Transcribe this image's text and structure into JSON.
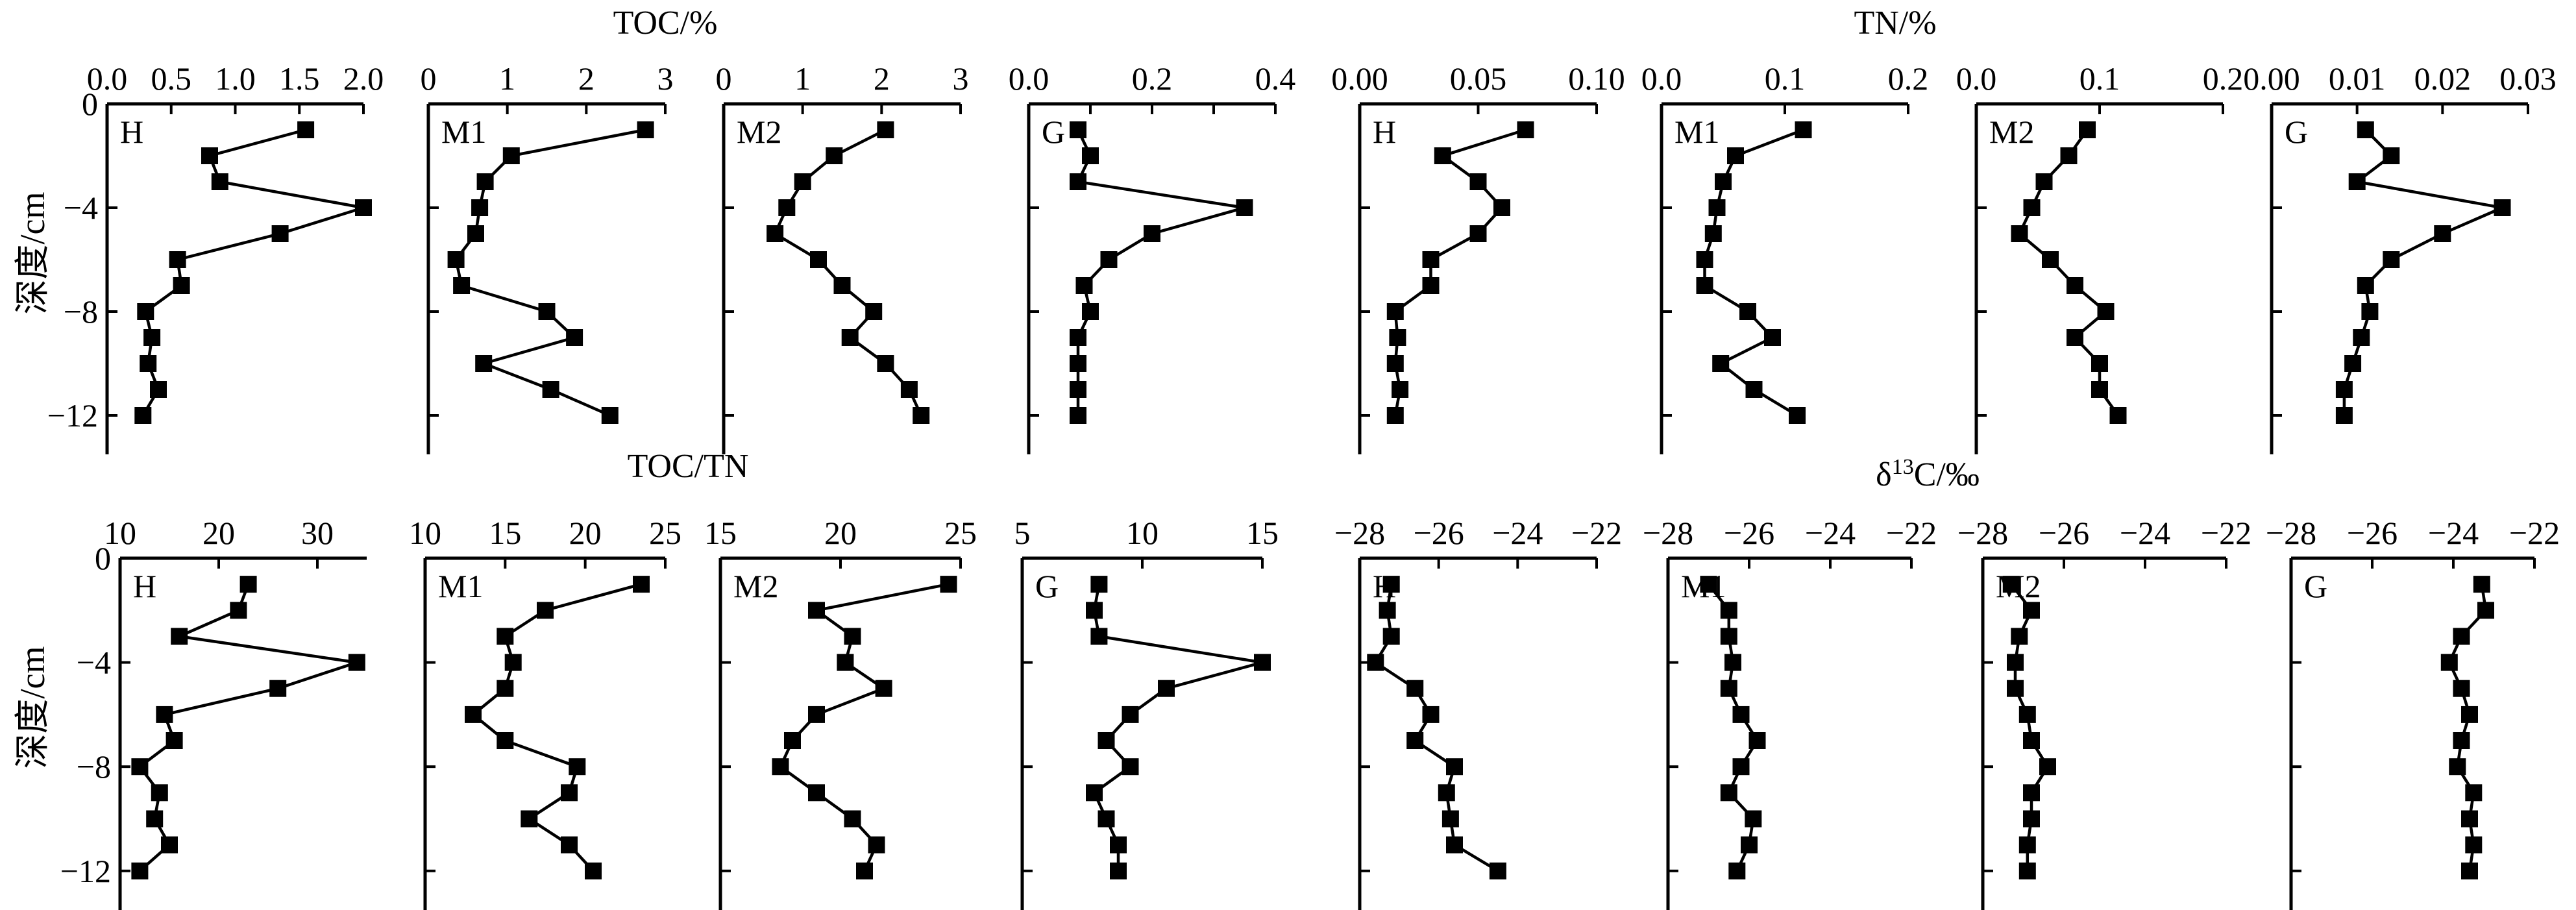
{
  "y_axis": {
    "label": "深度/cm",
    "ticks": [
      0,
      -4,
      -8,
      -12
    ],
    "tick_labels": [
      "0",
      "−4",
      "−8",
      "−12"
    ],
    "ylim": [
      0,
      -13.5
    ]
  },
  "group_titles": {
    "toc": "TOC/%",
    "tn": "TN/%",
    "ctn": "TOC/TN",
    "d13c_main": "δ",
    "d13c_sup": "13",
    "d13c_rest": "C/‰"
  },
  "chart_data": [
    {
      "type": "line",
      "variable": "TOC/%",
      "panel_label": "H",
      "xlim": [
        0,
        2.0
      ],
      "xticks": [
        0,
        0.5,
        1.0,
        1.5,
        2.0
      ],
      "xtick_labels": [
        "0.0",
        "0.5",
        "1.0",
        "1.5",
        "2.0"
      ],
      "x": [
        1.55,
        0.8,
        0.88,
        2.0,
        1.35,
        0.55,
        0.58,
        0.3,
        0.35,
        0.32,
        0.4,
        0.28
      ],
      "y": [
        -1,
        -2,
        -3,
        -4,
        -5,
        -6,
        -7,
        -8,
        -9,
        -10,
        -11,
        -12
      ]
    },
    {
      "type": "line",
      "variable": "TOC/%",
      "panel_label": "M1",
      "xlim": [
        0,
        3
      ],
      "xticks": [
        0,
        1,
        2,
        3
      ],
      "xtick_labels": [
        "0",
        "1",
        "2",
        "3"
      ],
      "x": [
        2.75,
        1.05,
        0.72,
        0.65,
        0.6,
        0.35,
        0.42,
        1.5,
        1.85,
        0.7,
        1.55,
        2.3
      ],
      "y": [
        -1,
        -2,
        -3,
        -4,
        -5,
        -6,
        -7,
        -8,
        -9,
        -10,
        -11,
        -12
      ]
    },
    {
      "type": "line",
      "variable": "TOC/%",
      "panel_label": "M2",
      "xlim": [
        0,
        3
      ],
      "xticks": [
        0,
        1,
        2,
        3
      ],
      "xtick_labels": [
        "0",
        "1",
        "2",
        "3"
      ],
      "x": [
        2.05,
        1.4,
        1.0,
        0.8,
        0.65,
        1.2,
        1.5,
        1.9,
        1.6,
        2.05,
        2.35,
        2.5
      ],
      "y": [
        -1,
        -2,
        -3,
        -4,
        -5,
        -6,
        -7,
        -8,
        -9,
        -10,
        -11,
        -12
      ]
    },
    {
      "type": "line",
      "variable": "TOC/%",
      "panel_label": "G",
      "xlim": [
        0,
        0.4
      ],
      "xticks": [
        0,
        0.1,
        0.2,
        0.3,
        0.4
      ],
      "xtick_labels": [
        "0.0",
        "",
        "0.2",
        "",
        "0.4"
      ],
      "x": [
        0.08,
        0.1,
        0.08,
        0.35,
        0.2,
        0.13,
        0.09,
        0.1,
        0.08,
        0.08,
        0.08,
        0.08
      ],
      "y": [
        -1,
        -2,
        -3,
        -4,
        -5,
        -6,
        -7,
        -8,
        -9,
        -10,
        -11,
        -12
      ]
    },
    {
      "type": "line",
      "variable": "TN/%",
      "panel_label": "H",
      "xlim": [
        0,
        0.1
      ],
      "xticks": [
        0,
        0.05,
        0.1
      ],
      "xtick_labels": [
        "0.00",
        "0.05",
        "0.10"
      ],
      "x": [
        0.07,
        0.035,
        0.05,
        0.06,
        0.05,
        0.03,
        0.03,
        0.015,
        0.016,
        0.015,
        0.017,
        0.015
      ],
      "y": [
        -1,
        -2,
        -3,
        -4,
        -5,
        -6,
        -7,
        -8,
        -9,
        -10,
        -11,
        -12
      ]
    },
    {
      "type": "line",
      "variable": "TN/%",
      "panel_label": "M1",
      "xlim": [
        0,
        0.2
      ],
      "xticks": [
        0,
        0.1,
        0.2
      ],
      "xtick_labels": [
        "0.0",
        "0.1",
        "0.2"
      ],
      "x": [
        0.115,
        0.06,
        0.05,
        0.045,
        0.042,
        0.035,
        0.035,
        0.07,
        0.09,
        0.048,
        0.075,
        0.11
      ],
      "y": [
        -1,
        -2,
        -3,
        -4,
        -5,
        -6,
        -7,
        -8,
        -9,
        -10,
        -11,
        -12
      ]
    },
    {
      "type": "line",
      "variable": "TN/%",
      "panel_label": "M2",
      "xlim": [
        0,
        0.2
      ],
      "xticks": [
        0,
        0.1,
        0.2
      ],
      "xtick_labels": [
        "0.0",
        "0.1",
        "0.2"
      ],
      "x": [
        0.09,
        0.075,
        0.055,
        0.045,
        0.035,
        0.06,
        0.08,
        0.105,
        0.08,
        0.1,
        0.1,
        0.115
      ],
      "y": [
        -1,
        -2,
        -3,
        -4,
        -5,
        -6,
        -7,
        -8,
        -9,
        -10,
        -11,
        -12
      ]
    },
    {
      "type": "line",
      "variable": "TN/%",
      "panel_label": "G",
      "xlim": [
        0,
        0.03
      ],
      "xticks": [
        0,
        0.01,
        0.02,
        0.03
      ],
      "xtick_labels": [
        "0.00",
        "0.01",
        "0.02",
        "0.03"
      ],
      "x": [
        0.011,
        0.014,
        0.01,
        0.027,
        0.02,
        0.014,
        0.011,
        0.0115,
        0.0105,
        0.0095,
        0.0085,
        0.0085
      ],
      "y": [
        -1,
        -2,
        -3,
        -4,
        -5,
        -6,
        -7,
        -8,
        -9,
        -10,
        -11,
        -12
      ]
    },
    {
      "type": "line",
      "variable": "TOC/TN",
      "panel_label": "H",
      "xlim": [
        10,
        35
      ],
      "xticks": [
        10,
        20,
        30
      ],
      "xtick_labels": [
        "10",
        "20",
        "30"
      ],
      "x": [
        23,
        22,
        16,
        34,
        26,
        14.5,
        15.5,
        12,
        14,
        13.5,
        15,
        12
      ],
      "y": [
        -1,
        -2,
        -3,
        -4,
        -5,
        -6,
        -7,
        -8,
        -9,
        -10,
        -11,
        -12
      ]
    },
    {
      "type": "line",
      "variable": "TOC/TN",
      "panel_label": "M1",
      "xlim": [
        10,
        25
      ],
      "xticks": [
        10,
        15,
        20,
        25
      ],
      "xtick_labels": [
        "10",
        "15",
        "20",
        "25"
      ],
      "x": [
        23.5,
        17.5,
        15,
        15.5,
        15,
        13,
        15,
        19.5,
        19,
        16.5,
        19,
        20.5
      ],
      "y": [
        -1,
        -2,
        -3,
        -4,
        -5,
        -6,
        -7,
        -8,
        -9,
        -10,
        -11,
        -12
      ]
    },
    {
      "type": "line",
      "variable": "TOC/TN",
      "panel_label": "M2",
      "xlim": [
        15,
        25
      ],
      "xticks": [
        15,
        20,
        25
      ],
      "xtick_labels": [
        "15",
        "20",
        "25"
      ],
      "x": [
        24.5,
        19,
        20.5,
        20.2,
        21.8,
        19,
        18,
        17.5,
        19,
        20.5,
        21.5,
        21
      ],
      "y": [
        -1,
        -2,
        -3,
        -4,
        -5,
        -6,
        -7,
        -8,
        -9,
        -10,
        -11,
        -12
      ]
    },
    {
      "type": "line",
      "variable": "TOC/TN",
      "panel_label": "G",
      "xlim": [
        5,
        15
      ],
      "xticks": [
        5,
        10,
        15
      ],
      "xtick_labels": [
        "5",
        "10",
        "15"
      ],
      "x": [
        8.2,
        8,
        8.2,
        15,
        11,
        9.5,
        8.5,
        9.5,
        8,
        8.5,
        9,
        9
      ],
      "y": [
        -1,
        -2,
        -3,
        -4,
        -5,
        -6,
        -7,
        -8,
        -9,
        -10,
        -11,
        -12
      ]
    },
    {
      "type": "line",
      "variable": "δ13C/‰",
      "panel_label": "H",
      "xlim": [
        -28,
        -22
      ],
      "xticks": [
        -28,
        -26,
        -24,
        -22
      ],
      "xtick_labels": [
        "−28",
        "−26",
        "−24",
        "−22"
      ],
      "x": [
        -27.2,
        -27.3,
        -27.2,
        -27.6,
        -26.6,
        -26.2,
        -26.6,
        -25.6,
        -25.8,
        -25.7,
        -25.6,
        -24.5
      ],
      "y": [
        -1,
        -2,
        -3,
        -4,
        -5,
        -6,
        -7,
        -8,
        -9,
        -10,
        -11,
        -12
      ]
    },
    {
      "type": "line",
      "variable": "δ13C/‰",
      "panel_label": "M1",
      "xlim": [
        -28,
        -22
      ],
      "xticks": [
        -28,
        -26,
        -24,
        -22
      ],
      "xtick_labels": [
        "−28",
        "−26",
        "−24",
        "−22"
      ],
      "x": [
        -27,
        -26.5,
        -26.5,
        -26.4,
        -26.5,
        -26.2,
        -25.8,
        -26.2,
        -26.5,
        -25.9,
        -26,
        -26.3
      ],
      "y": [
        -1,
        -2,
        -3,
        -4,
        -5,
        -6,
        -7,
        -8,
        -9,
        -10,
        -11,
        -12
      ]
    },
    {
      "type": "line",
      "variable": "δ13C/‰",
      "panel_label": "M2",
      "xlim": [
        -28,
        -22
      ],
      "xticks": [
        -28,
        -26,
        -24,
        -22
      ],
      "xtick_labels": [
        "−28",
        "−26",
        "−24",
        "−22"
      ],
      "x": [
        -27.3,
        -26.8,
        -27.1,
        -27.2,
        -27.2,
        -26.9,
        -26.8,
        -26.4,
        -26.8,
        -26.8,
        -26.9,
        -26.9
      ],
      "y": [
        -1,
        -2,
        -3,
        -4,
        -5,
        -6,
        -7,
        -8,
        -9,
        -10,
        -11,
        -12
      ]
    },
    {
      "type": "line",
      "variable": "δ13C/‰",
      "panel_label": "G",
      "xlim": [
        -28,
        -22
      ],
      "xticks": [
        -28,
        -26,
        -24,
        -22
      ],
      "xtick_labels": [
        "−28",
        "−26",
        "−24",
        "−22"
      ],
      "x": [
        -23.3,
        -23.2,
        -23.8,
        -24.1,
        -23.8,
        -23.6,
        -23.8,
        -23.9,
        -23.5,
        -23.6,
        -23.5,
        -23.6
      ],
      "y": [
        -1,
        -2,
        -3,
        -4,
        -5,
        -6,
        -7,
        -8,
        -9,
        -10,
        -11,
        -12
      ]
    }
  ]
}
